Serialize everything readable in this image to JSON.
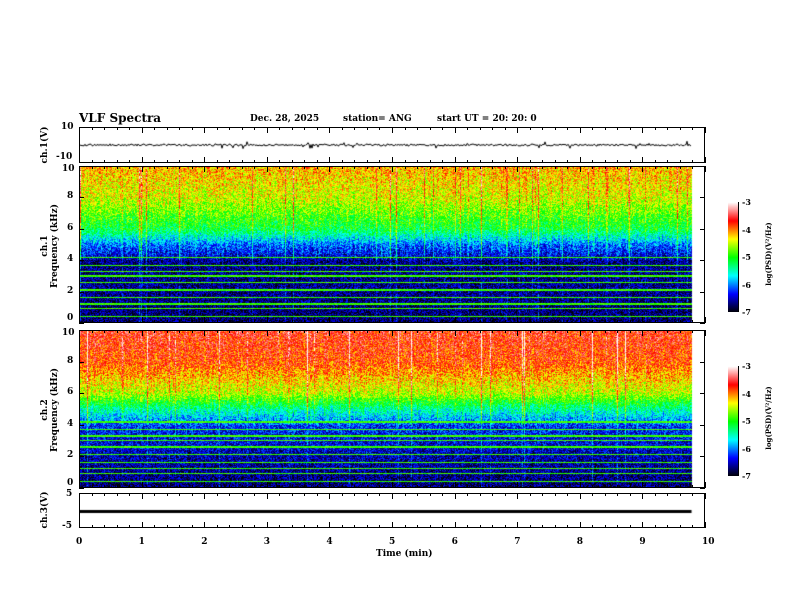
{
  "header": {
    "title": "VLF Spectra",
    "date": "Dec. 28, 2025",
    "station": "station= ANG",
    "start": "start  UT =   20: 20: 0"
  },
  "panels": {
    "ch1": {
      "ylabel": "ch.1(V)",
      "ticks": [
        "10",
        "-10"
      ]
    },
    "spec1": {
      "ylabel": "ch.1\nFrequency (kHz)",
      "ylabel1": "ch.1",
      "ylabel2": "Frequency (kHz)",
      "ticks": [
        "10",
        "8",
        "6",
        "4",
        "2",
        "0"
      ]
    },
    "spec2": {
      "ylabel1": "ch.2",
      "ylabel2": "Frequency (kHz)",
      "ticks": [
        "10",
        "8",
        "6",
        "4",
        "2",
        "0"
      ]
    },
    "ch3": {
      "ylabel": "ch.3(V)",
      "ticks": [
        "5",
        "-5"
      ]
    }
  },
  "colorbar": {
    "label": "log(PSD)(V²/Hz)",
    "ticks": [
      "-3",
      "-4",
      "-5",
      "-6",
      "-7"
    ]
  },
  "xaxis": {
    "label": "Time  (min)",
    "ticks": [
      "0",
      "1",
      "2",
      "3",
      "4",
      "5",
      "6",
      "7",
      "8",
      "9",
      "10"
    ]
  },
  "chart_data": {
    "type": "heatmap",
    "title": "VLF Spectra",
    "xlabel": "Time (min)",
    "xlim": [
      0,
      10
    ],
    "data_end_min": 9.8,
    "series": [
      {
        "name": "ch.1(V)",
        "type": "line",
        "ylim": [
          -10,
          10
        ],
        "level": 0
      },
      {
        "name": "ch.1 spectrogram",
        "ylabel": "Frequency (kHz)",
        "ylim": [
          0,
          10
        ],
        "clim": [
          -7,
          -3
        ],
        "profile_khz": [
          0,
          2,
          4,
          5,
          6,
          8,
          10
        ],
        "profile_logpsd": [
          -6.8,
          -6.7,
          -6.7,
          -6.2,
          -5.3,
          -4.6,
          -4.3
        ]
      },
      {
        "name": "ch.2 spectrogram",
        "ylabel": "Frequency (kHz)",
        "ylim": [
          0,
          10
        ],
        "clim": [
          -7,
          -3
        ],
        "profile_khz": [
          0,
          2,
          4,
          5,
          6,
          8,
          10
        ],
        "profile_logpsd": [
          -6.8,
          -6.6,
          -6.3,
          -5.6,
          -4.7,
          -4.0,
          -3.8
        ]
      },
      {
        "name": "ch.3(V)",
        "type": "line",
        "ylim": [
          -5,
          5
        ],
        "level": -1.5
      }
    ],
    "colors": {
      "scale": [
        "#000000",
        "#0000ff",
        "#00ffff",
        "#00ff00",
        "#ffff00",
        "#ff0000",
        "#ffffff"
      ]
    }
  }
}
